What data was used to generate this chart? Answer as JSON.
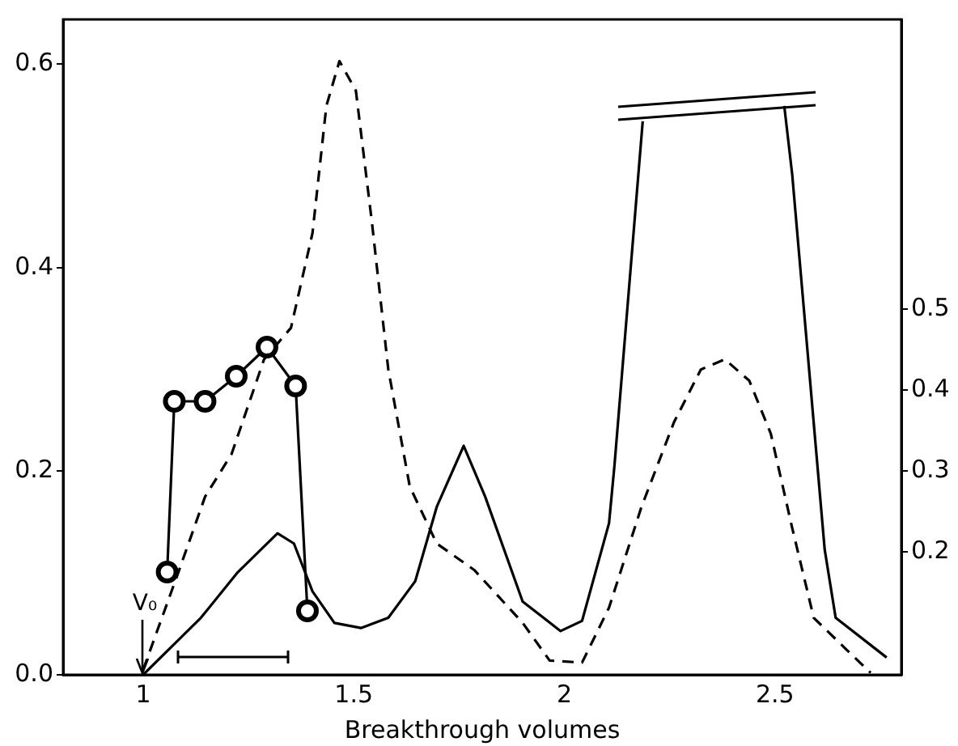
{
  "chart_data": {
    "type": "line",
    "xlabel": "Breakthrough volumes",
    "xlim": [
      0.81,
      2.8
    ],
    "xticks": [
      1,
      1.5,
      2,
      2.5
    ],
    "ylim": [
      0,
      0.644
    ],
    "yticks": [
      {
        "value": 0,
        "label": "0.0"
      },
      0.2,
      0.4,
      0.6
    ],
    "y2lim": [
      0.048,
      0.858
    ],
    "y2ticks": [
      0.2,
      0.3,
      0.4,
      0.5
    ],
    "grid": false,
    "legend": false,
    "annotations": [
      {
        "text": "V₀",
        "x": 1,
        "y": 0
      }
    ],
    "series": [
      {
        "color": "#000000",
        "line_style": "solid",
        "marker": "none",
        "x": [
          1.0,
          1.137,
          1.223,
          1.319,
          1.358,
          1.402,
          1.454,
          1.517,
          1.582,
          1.646,
          1.697,
          1.761,
          1.812,
          1.901,
          1.991,
          2.042,
          2.106,
          2.119,
          2.186,
          2.35,
          2.522,
          2.541,
          2.618,
          2.644,
          2.765
        ],
        "values": [
          0.0,
          0.056,
          0.1,
          0.139,
          0.129,
          0.082,
          0.051,
          0.046,
          0.056,
          0.092,
          0.165,
          0.225,
          0.175,
          0.072,
          0.043,
          0.053,
          0.149,
          0.206,
          0.544,
          null,
          0.559,
          0.491,
          0.123,
          0.056,
          0.017
        ]
      },
      {
        "color": "#000000",
        "line_style": "dashed",
        "marker": "none",
        "x": [
          1.0,
          1.083,
          1.147,
          1.21,
          1.287,
          1.351,
          1.402,
          1.435,
          1.466,
          1.505,
          1.543,
          1.582,
          1.633,
          1.697,
          1.786,
          1.901,
          1.965,
          2.042,
          2.106,
          2.183,
          2.26,
          2.324,
          2.381,
          2.439,
          2.49,
          2.541,
          2.592,
          2.669,
          2.727
        ],
        "values": [
          0.005,
          0.1,
          0.175,
          0.217,
          0.31,
          0.341,
          0.434,
          0.559,
          0.603,
          0.574,
          0.445,
          0.3,
          0.185,
          0.129,
          0.103,
          0.051,
          0.014,
          0.012,
          0.066,
          0.165,
          0.248,
          0.3,
          0.31,
          0.289,
          0.237,
          0.144,
          0.056,
          0.025,
          0.002
        ]
      },
      {
        "color": "#000000",
        "line_style": "solid",
        "marker": "circle",
        "axis": "y2",
        "x": [
          1.057,
          1.074,
          1.147,
          1.221,
          1.294,
          1.362,
          1.39
        ],
        "values": [
          0.175,
          0.386,
          0.386,
          0.417,
          0.453,
          0.405,
          0.127
        ]
      }
    ]
  }
}
